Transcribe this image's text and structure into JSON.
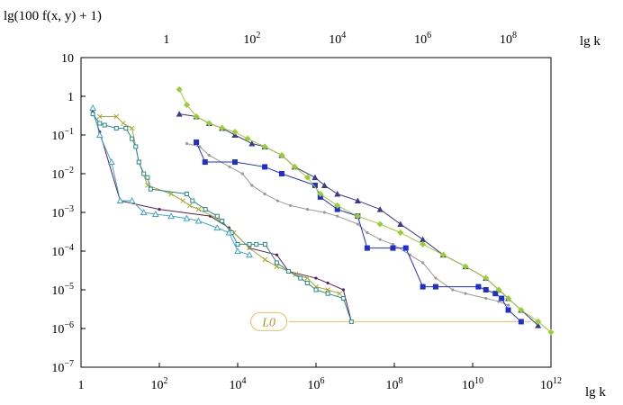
{
  "chart_data": {
    "type": "line",
    "title": "",
    "ylabel": "lg(100 f(x, y) + 1)",
    "xlabel": "lg k",
    "top_xlabel": "lg k",
    "x_scale": "log",
    "y_scale": "log",
    "xlim": [
      1,
      1000000000000.0
    ],
    "ylim": [
      1e-07,
      10
    ],
    "top_xlim": [
      0.01,
      1000000000.0
    ],
    "grid": false,
    "legend": "none",
    "x_ticks": [
      {
        "base": "1",
        "exp": ""
      },
      {
        "base": "10",
        "exp": "2"
      },
      {
        "base": "10",
        "exp": "4"
      },
      {
        "base": "10",
        "exp": "6"
      },
      {
        "base": "10",
        "exp": "8"
      },
      {
        "base": "10",
        "exp": "10"
      },
      {
        "base": "10",
        "exp": "12"
      }
    ],
    "top_ticks": [
      {
        "base": "1",
        "exp": ""
      },
      {
        "base": "10",
        "exp": "2"
      },
      {
        "base": "10",
        "exp": "4"
      },
      {
        "base": "10",
        "exp": "6"
      },
      {
        "base": "10",
        "exp": "8"
      }
    ],
    "y_ticks": [
      {
        "base": "10",
        "exp": ""
      },
      {
        "base": "1",
        "exp": ""
      },
      {
        "base": "10",
        "exp": "−1"
      },
      {
        "base": "10",
        "exp": "−2"
      },
      {
        "base": "10",
        "exp": "−3"
      },
      {
        "base": "10",
        "exp": "−4"
      },
      {
        "base": "10",
        "exp": "−5"
      },
      {
        "base": "10",
        "exp": "−6"
      },
      {
        "base": "10",
        "exp": "−7"
      }
    ],
    "annotations": [
      {
        "text": "L0",
        "color": "#e8c15a",
        "y": 1.5e-06,
        "x_start": 200000.0,
        "x_end": 300000000000.0
      }
    ],
    "series": [
      {
        "color": "#5b1e5b",
        "marker": "dot",
        "axis": "bottom",
        "x": [
          2,
          3,
          10,
          100,
          2000,
          6000,
          20000.0,
          100000.0,
          200000.0,
          1000000.0,
          2000000.0,
          5000000.0,
          8000000.0
        ],
        "y": [
          0.4,
          0.12,
          0.002,
          0.0012,
          0.0008,
          0.0004,
          0.00012,
          8e-05,
          3e-05,
          2e-05,
          1.5e-05,
          1e-05,
          1.5e-06
        ]
      },
      {
        "color": "#a8a832",
        "marker": "x",
        "axis": "bottom",
        "x": [
          3,
          8,
          12,
          20,
          30,
          50,
          200,
          400,
          600,
          1000,
          3000,
          8000,
          20000.0,
          50000.0,
          100000.0,
          300000.0,
          600000.0,
          1000000.0,
          2000000.0,
          4000000.0
        ],
        "y": [
          0.3,
          0.3,
          0.2,
          0.15,
          0.02,
          0.005,
          0.003,
          0.002,
          0.0015,
          0.0012,
          0.0007,
          0.0003,
          0.00012,
          6e-05,
          4e-05,
          2.5e-05,
          2e-05,
          1.2e-05,
          1e-05,
          8e-06
        ]
      },
      {
        "color": "#2a8a8a",
        "marker": "square",
        "axis": "bottom",
        "x": [
          2,
          3,
          4,
          8,
          14,
          20,
          25,
          30,
          40,
          50,
          60,
          500,
          700,
          1500,
          3000,
          4000,
          7000,
          10000.0,
          20000.0,
          30000.0,
          50000.0,
          100000.0,
          200000.0,
          400000.0,
          600000.0,
          1000000.0,
          2000000.0,
          5000000.0,
          8000000.0
        ],
        "y": [
          0.35,
          0.2,
          0.18,
          0.15,
          0.15,
          0.08,
          0.05,
          0.02,
          0.01,
          0.008,
          0.004,
          0.003,
          0.002,
          0.0012,
          0.0008,
          0.0006,
          0.0003,
          0.00015,
          0.00015,
          0.00015,
          0.00015,
          5e-05,
          3e-05,
          2e-05,
          1.5e-05,
          1e-05,
          8e-06,
          6e-06,
          1.5e-06
        ]
      },
      {
        "color": "#3fa7c6",
        "marker": "triangle-open",
        "axis": "bottom",
        "x": [
          2,
          3,
          6,
          10,
          20,
          40,
          80,
          200,
          500,
          1000,
          3000,
          6000,
          10000.0,
          20000.0
        ],
        "y": [
          0.5,
          0.1,
          0.02,
          0.002,
          0.002,
          0.001,
          0.0009,
          0.0008,
          0.0007,
          0.0006,
          0.0004,
          0.0003,
          0.0001,
          8e-05
        ]
      },
      {
        "color": "#999999",
        "marker": "dot",
        "axis": "top",
        "x": [
          3,
          6,
          10,
          30,
          60,
          100,
          200,
          400,
          800,
          2000,
          5000,
          10000.0,
          30000.0,
          50000.0,
          100000.0,
          200000.0,
          500000.0,
          1000000.0,
          2000000.0,
          5000000.0,
          10000000.0,
          30000000.0,
          60000000.0,
          100000000.0
        ],
        "y": [
          0.06,
          0.05,
          0.03,
          0.015,
          0.01,
          0.005,
          0.003,
          0.002,
          0.0015,
          0.0012,
          0.001,
          0.0008,
          0.0005,
          0.0003,
          0.0002,
          0.00015,
          8e-05,
          5e-05,
          2e-05,
          1e-05,
          8e-06,
          6e-06,
          5e-06,
          4e-06
        ]
      },
      {
        "color": "#1f2fcf",
        "marker": "square-filled",
        "axis": "top",
        "x": [
          5,
          8,
          40,
          200,
          500,
          3000,
          4000,
          10000.0,
          30000.0,
          50000.0,
          200000.0,
          400000.0,
          1000000.0,
          2000000.0,
          20000000.0,
          30000000.0,
          50000000.0,
          70000000.0,
          100000000.0,
          200000000.0
        ],
        "y": [
          0.065,
          0.02,
          0.02,
          0.015,
          0.01,
          0.005,
          0.0025,
          0.0012,
          0.0008,
          0.00012,
          0.00012,
          0.00012,
          1.2e-05,
          1.2e-05,
          1.2e-05,
          1e-05,
          8e-06,
          6e-06,
          3e-06,
          1.5e-06
        ]
      },
      {
        "color": "#3a3a8a",
        "marker": "triangle-filled",
        "axis": "top",
        "x": [
          2,
          5,
          10,
          20,
          40,
          100,
          200,
          500,
          1000,
          3000,
          5000,
          10000.0,
          30000.0,
          100000.0,
          300000.0,
          1000000.0,
          3000000.0,
          10000000.0,
          30000000.0,
          60000000.0,
          100000000.0,
          200000000.0,
          500000000.0
        ],
        "y": [
          0.35,
          0.3,
          0.2,
          0.15,
          0.1,
          0.06,
          0.05,
          0.03,
          0.015,
          0.008,
          0.005,
          0.003,
          0.002,
          0.0012,
          0.0005,
          0.0002,
          8e-05,
          4e-05,
          2e-05,
          1e-05,
          6e-06,
          3e-06,
          1.2e-06
        ]
      },
      {
        "color": "#9acd32",
        "marker": "diamond",
        "axis": "top",
        "x": [
          2,
          3,
          5,
          10,
          20,
          40,
          80,
          200,
          500,
          1000,
          2000,
          4000,
          10000.0,
          30000.0,
          100000.0,
          300000.0,
          1000000.0,
          3000000.0,
          10000000.0,
          30000000.0,
          60000000.0,
          100000000.0,
          200000000.0,
          500000000.0,
          1000000000.0
        ],
        "y": [
          1.5,
          0.6,
          0.3,
          0.2,
          0.15,
          0.12,
          0.08,
          0.05,
          0.03,
          0.015,
          0.008,
          0.003,
          0.0015,
          0.0008,
          0.0005,
          0.0003,
          0.00015,
          8e-05,
          4e-05,
          2e-05,
          1e-05,
          6e-06,
          3e-06,
          1.5e-06,
          8e-07
        ]
      }
    ]
  }
}
